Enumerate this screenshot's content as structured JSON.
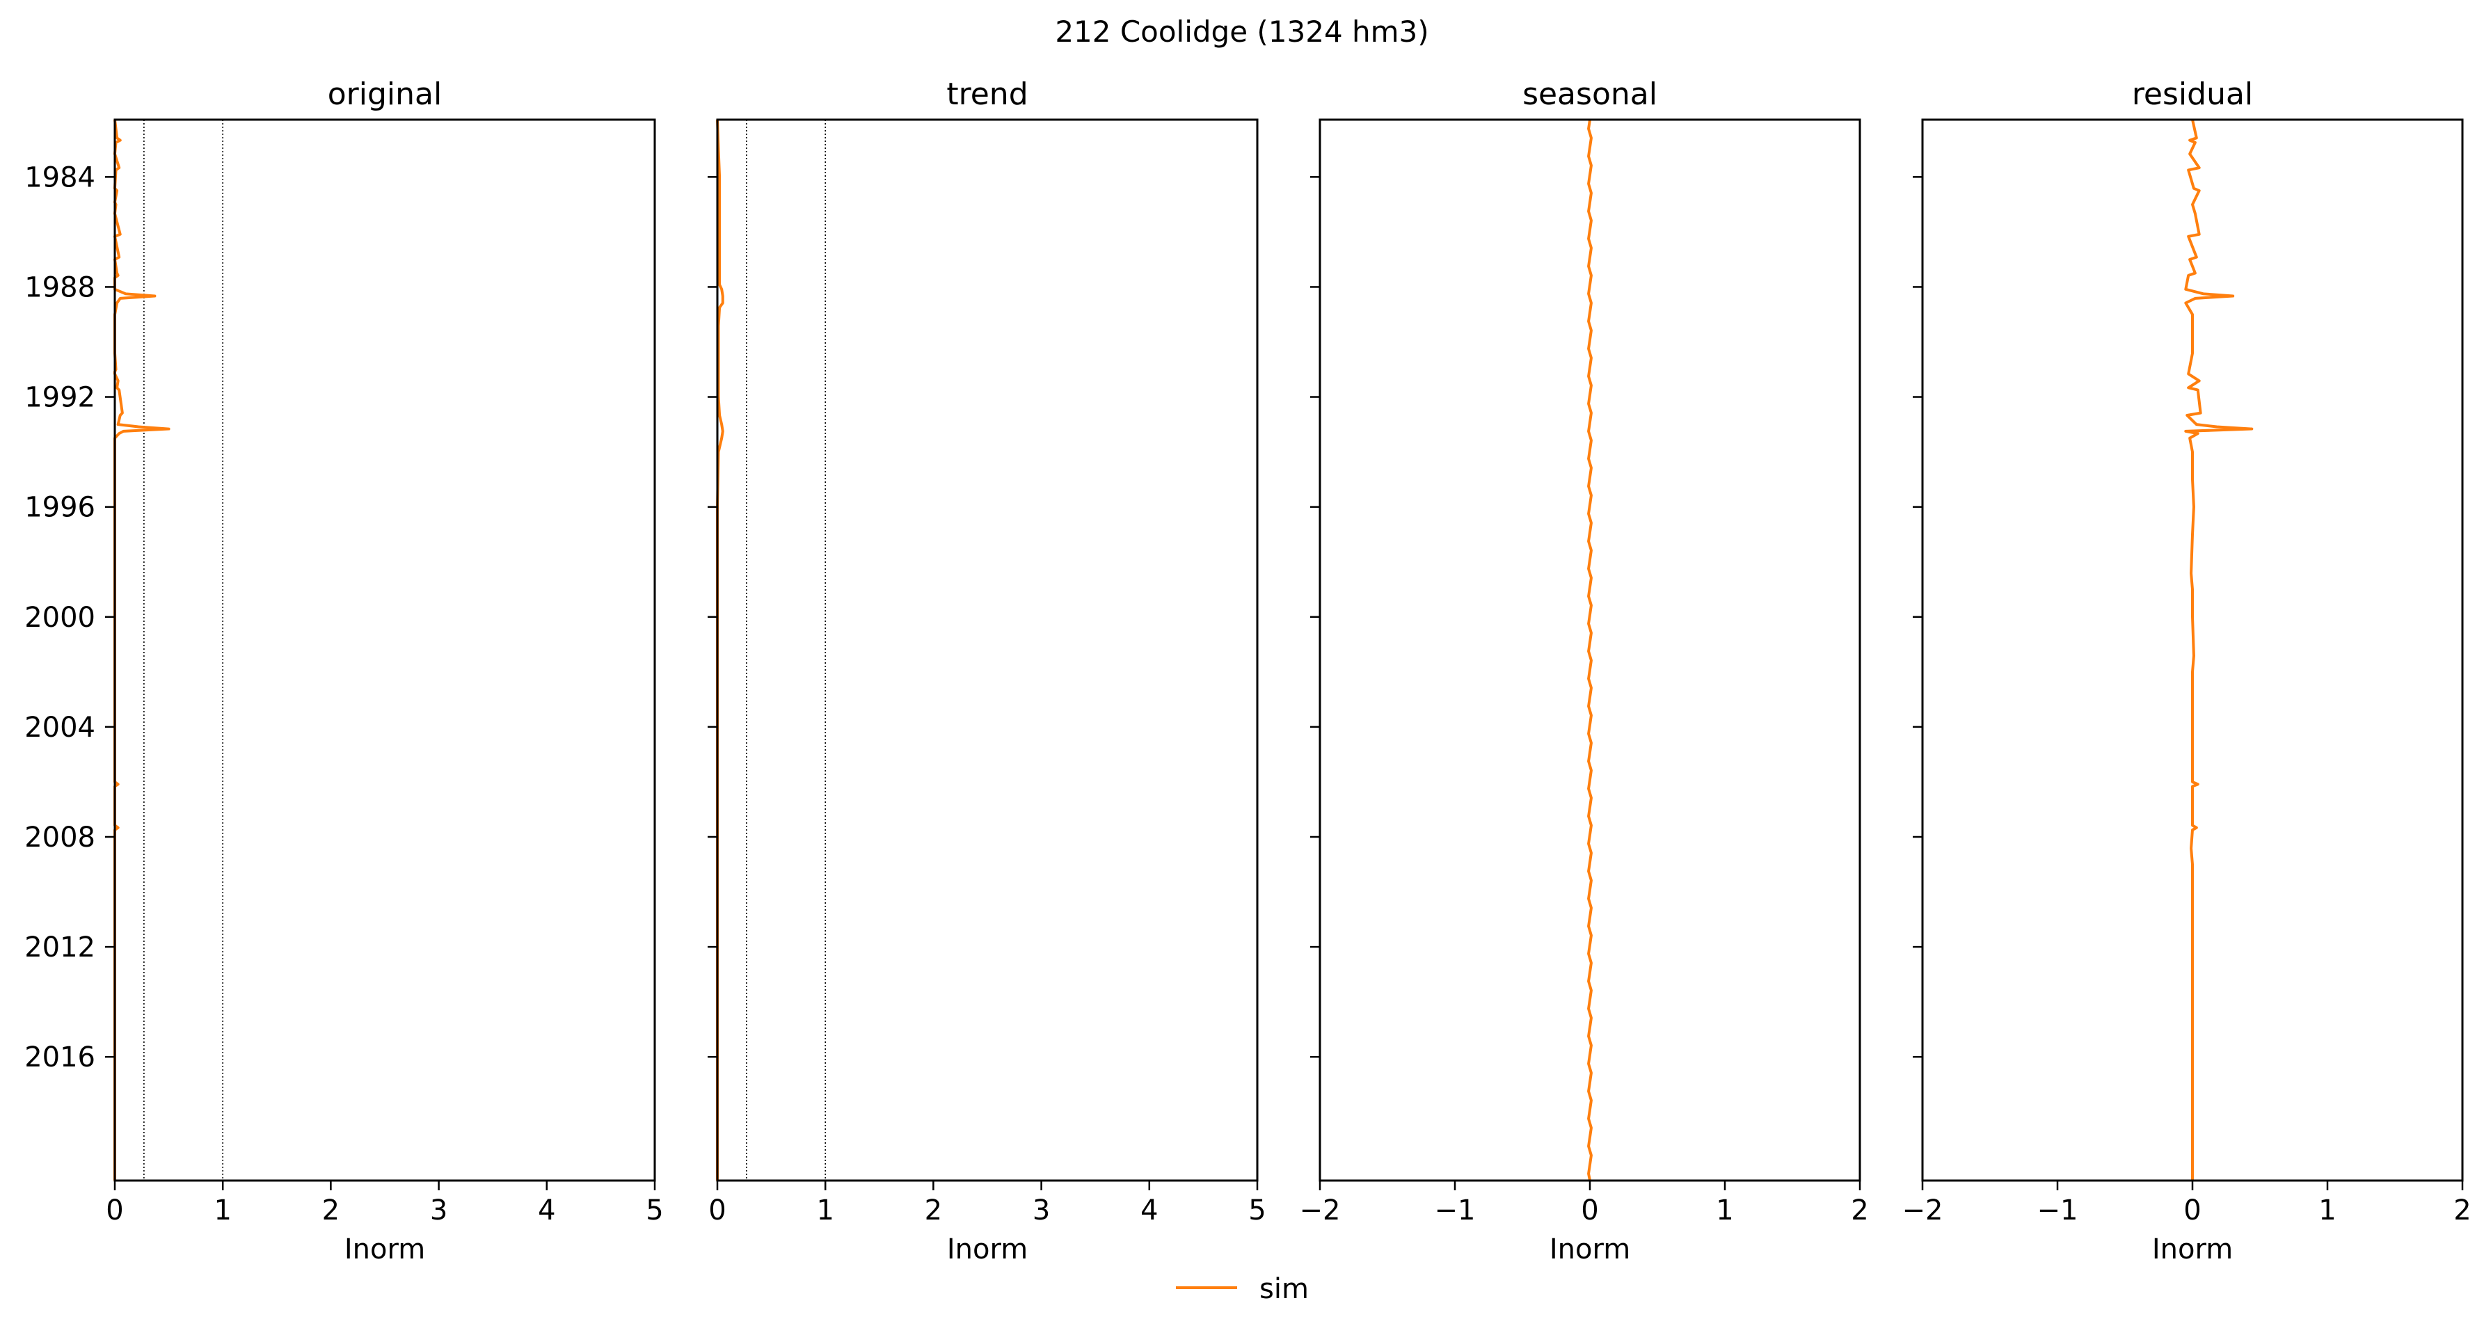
{
  "figure": {
    "suptitle": "212  Coolidge (1324 hm3)",
    "legend": {
      "label": "sim",
      "placement": "bottom-center"
    }
  },
  "colors": {
    "sim": "#ff7f0e",
    "axis": "#000000",
    "reference_line": "#000000"
  },
  "chart_data": [
    {
      "type": "line",
      "title": "original",
      "xlabel": "Inorm",
      "ylabel": "",
      "xlim": [
        0,
        5
      ],
      "ylim": [
        "1981-12-01",
        "2020-07-01"
      ],
      "y_inverted": true,
      "xticks": [
        "0",
        "1",
        "2",
        "3",
        "4",
        "5"
      ],
      "yticks": [
        "1984",
        "1988",
        "1992",
        "1996",
        "2000",
        "2004",
        "2008",
        "2012",
        "2016"
      ],
      "reference_lines_x": [
        0.27,
        1.0
      ],
      "series": [
        {
          "name": "sim",
          "y": [
            "1981-12-01",
            "1982-08-01",
            "1982-09-01",
            "1982-10-01",
            "1983-03-01",
            "1983-09-01",
            "1983-10-01",
            "1984-06-01",
            "1984-07-01",
            "1984-12-01",
            "1985-01-01",
            "1985-05-01",
            "1986-02-01",
            "1986-03-01",
            "1986-12-01",
            "1987-01-01",
            "1987-07-01",
            "1987-08-01",
            "1987-09-01",
            "1988-02-01",
            "1988-04-01",
            "1988-05-01",
            "1988-06-01",
            "1988-08-01",
            "1989-01-01",
            "1989-06-01",
            "1990-06-01",
            "1991-01-01",
            "1991-02-01",
            "1991-03-01",
            "1991-06-01",
            "1991-09-01",
            "1991-10-01",
            "1992-08-01",
            "1992-09-01",
            "1993-01-01",
            "1993-02-01",
            "1993-03-01",
            "1993-04-01",
            "1993-05-01",
            "1993-07-01",
            "1994-01-01",
            "1994-08-01",
            "1995-01-01",
            "1996-01-01",
            "1997-01-01",
            "1998-01-01",
            "1999-01-01",
            "2000-01-01",
            "2001-01-01",
            "2002-01-01",
            "2003-01-01",
            "2004-01-01",
            "2005-01-01",
            "2006-01-01",
            "2006-02-01",
            "2006-03-01",
            "2007-01-01",
            "2007-08-01",
            "2007-09-01",
            "2007-10-01",
            "2008-06-01",
            "2009-01-01",
            "2010-01-01",
            "2011-01-01",
            "2012-01-01",
            "2013-01-01",
            "2014-01-01",
            "2015-01-01",
            "2016-01-01",
            "2017-01-01",
            "2018-01-01",
            "2019-01-01",
            "2020-01-01",
            "2020-07-01"
          ],
          "x": [
            0.0,
            0.02,
            0.05,
            0.01,
            0.0,
            0.04,
            0.01,
            0.0,
            0.02,
            0.0,
            0.01,
            0.0,
            0.05,
            0.0,
            0.04,
            0.0,
            0.02,
            0.03,
            0.0,
            0.0,
            0.1,
            0.37,
            0.05,
            0.02,
            0.0,
            0.0,
            0.0,
            0.01,
            0.0,
            0.0,
            0.03,
            0.02,
            0.04,
            0.07,
            0.05,
            0.03,
            0.22,
            0.5,
            0.08,
            0.04,
            0.0,
            0.0,
            0.0,
            0.0,
            0.0,
            0.0,
            0.0,
            0.0,
            0.0,
            0.0,
            0.0,
            0.0,
            0.0,
            0.0,
            0.0,
            0.03,
            0.0,
            0.0,
            0.0,
            0.03,
            0.0,
            0.0,
            0.0,
            0.0,
            0.0,
            0.0,
            0.0,
            0.0,
            0.0,
            0.0,
            0.0,
            0.0,
            0.0,
            0.0,
            0.0
          ]
        }
      ]
    },
    {
      "type": "line",
      "title": "trend",
      "xlabel": "Inorm",
      "ylabel": "",
      "xlim": [
        0,
        5
      ],
      "ylim": [
        "1981-12-01",
        "2020-07-01"
      ],
      "y_inverted": true,
      "xticks": [
        "0",
        "1",
        "2",
        "3",
        "4",
        "5"
      ],
      "yticks": [],
      "reference_lines_x": [
        0.27,
        1.0
      ],
      "series": [
        {
          "name": "sim",
          "y": [
            "1981-12-01",
            "1983-01-01",
            "1984-01-01",
            "1985-01-01",
            "1986-01-01",
            "1987-01-01",
            "1987-12-01",
            "1988-02-01",
            "1988-05-01",
            "1988-08-01",
            "1988-10-01",
            "1989-06-01",
            "1991-01-01",
            "1992-01-01",
            "1992-09-01",
            "1993-01-01",
            "1993-04-01",
            "1993-07-01",
            "1994-01-01",
            "1996-01-01",
            "2000-01-01",
            "2004-01-01",
            "2008-01-01",
            "2012-01-01",
            "2016-01-01",
            "2020-07-01"
          ],
          "x": [
            0.0,
            0.01,
            0.02,
            0.02,
            0.02,
            0.02,
            0.02,
            0.04,
            0.05,
            0.05,
            0.02,
            0.01,
            0.01,
            0.01,
            0.02,
            0.04,
            0.05,
            0.04,
            0.01,
            0.0,
            0.0,
            0.0,
            0.0,
            0.0,
            0.0,
            0.0
          ]
        }
      ]
    },
    {
      "type": "line",
      "title": "seasonal",
      "xlabel": "Inorm",
      "ylabel": "",
      "xlim": [
        -2,
        2
      ],
      "ylim": [
        "1981-12-01",
        "2020-07-01"
      ],
      "y_inverted": true,
      "xticks": [
        "−2",
        "−1",
        "0",
        "1",
        "2"
      ],
      "yticks": [],
      "reference_lines_x": [],
      "series": [
        {
          "name": "sim",
          "y": [
            "1981-12-01",
            "1982-04-01",
            "1982-08-01",
            "1983-04-01",
            "1983-08-01",
            "1984-04-01",
            "1984-08-01",
            "1985-04-01",
            "1985-08-01",
            "1986-04-01",
            "1986-08-01",
            "1987-04-01",
            "1987-08-01",
            "1988-04-01",
            "1988-08-01",
            "1989-04-01",
            "1989-08-01",
            "1990-04-01",
            "1990-08-01",
            "1991-04-01",
            "1991-08-01",
            "1992-04-01",
            "1992-08-01",
            "1993-04-01",
            "1993-08-01",
            "1994-04-01",
            "1994-08-01",
            "1995-04-01",
            "1995-08-01",
            "1996-04-01",
            "1996-08-01",
            "1997-04-01",
            "1997-08-01",
            "1998-04-01",
            "1998-08-01",
            "1999-04-01",
            "1999-08-01",
            "2000-04-01",
            "2000-08-01",
            "2001-04-01",
            "2001-08-01",
            "2002-04-01",
            "2002-08-01",
            "2003-04-01",
            "2003-08-01",
            "2004-04-01",
            "2004-08-01",
            "2005-04-01",
            "2005-08-01",
            "2006-04-01",
            "2006-08-01",
            "2007-04-01",
            "2007-08-01",
            "2008-04-01",
            "2008-08-01",
            "2009-04-01",
            "2009-08-01",
            "2010-04-01",
            "2010-08-01",
            "2011-04-01",
            "2011-08-01",
            "2012-04-01",
            "2012-08-01",
            "2013-04-01",
            "2013-08-01",
            "2014-04-01",
            "2014-08-01",
            "2015-04-01",
            "2015-08-01",
            "2016-04-01",
            "2016-08-01",
            "2017-04-01",
            "2017-08-01",
            "2018-04-01",
            "2018-08-01",
            "2019-04-01",
            "2019-08-01",
            "2020-04-01",
            "2020-07-01"
          ],
          "x": [
            0.0,
            -0.01,
            0.01,
            -0.01,
            0.01,
            -0.01,
            0.01,
            -0.01,
            0.01,
            -0.01,
            0.01,
            -0.01,
            0.01,
            -0.01,
            0.01,
            -0.01,
            0.01,
            -0.01,
            0.01,
            -0.01,
            0.01,
            -0.01,
            0.01,
            -0.01,
            0.01,
            -0.01,
            0.01,
            -0.01,
            0.01,
            -0.01,
            0.01,
            -0.01,
            0.01,
            -0.01,
            0.01,
            -0.01,
            0.01,
            -0.01,
            0.01,
            -0.01,
            0.01,
            -0.01,
            0.01,
            -0.01,
            0.01,
            -0.01,
            0.01,
            -0.01,
            0.01,
            -0.01,
            0.01,
            -0.01,
            0.01,
            -0.01,
            0.01,
            -0.01,
            0.01,
            -0.01,
            0.01,
            -0.01,
            0.01,
            -0.01,
            0.01,
            -0.01,
            0.01,
            -0.01,
            0.01,
            -0.01,
            0.01,
            -0.01,
            0.01,
            -0.01,
            0.01,
            -0.01,
            0.01,
            -0.01,
            0.01,
            -0.01,
            0.0
          ]
        }
      ]
    },
    {
      "type": "line",
      "title": "residual",
      "xlabel": "Inorm",
      "ylabel": "",
      "xlim": [
        -2,
        2
      ],
      "ylim": [
        "1981-12-01",
        "2020-07-01"
      ],
      "y_inverted": true,
      "xticks": [
        "−2",
        "−1",
        "0",
        "1",
        "2"
      ],
      "yticks": [],
      "reference_lines_x": [],
      "series": [
        {
          "name": "sim",
          "y": [
            "1981-12-01",
            "1982-08-01",
            "1982-09-01",
            "1982-10-01",
            "1983-03-01",
            "1983-09-01",
            "1983-10-01",
            "1984-06-01",
            "1984-07-01",
            "1985-01-01",
            "1985-05-01",
            "1986-02-01",
            "1986-03-01",
            "1986-12-01",
            "1987-01-01",
            "1987-07-01",
            "1987-08-01",
            "1988-02-01",
            "1988-04-01",
            "1988-05-01",
            "1988-06-01",
            "1988-08-01",
            "1989-01-01",
            "1990-06-01",
            "1991-03-01",
            "1991-06-01",
            "1991-09-01",
            "1991-10-01",
            "1992-08-01",
            "1992-09-01",
            "1993-01-01",
            "1993-02-01",
            "1993-03-01",
            "1993-04-01",
            "1993-05-01",
            "1993-07-01",
            "1994-01-01",
            "1995-01-01",
            "1996-01-01",
            "1997-01-01",
            "1998-06-01",
            "1999-01-01",
            "2000-01-01",
            "2001-06-01",
            "2002-01-01",
            "2003-01-01",
            "2004-01-01",
            "2005-01-01",
            "2006-01-01",
            "2006-02-01",
            "2006-03-01",
            "2007-08-01",
            "2007-09-01",
            "2007-10-01",
            "2008-06-01",
            "2009-01-01",
            "2010-01-01",
            "2012-01-01",
            "2014-01-01",
            "2016-01-01",
            "2018-01-01",
            "2020-07-01"
          ],
          "x": [
            0.0,
            0.03,
            -0.02,
            0.02,
            -0.02,
            0.05,
            -0.03,
            0.01,
            0.05,
            0.0,
            0.02,
            0.05,
            -0.03,
            0.03,
            -0.02,
            0.02,
            -0.03,
            -0.05,
            0.08,
            0.3,
            0.02,
            -0.05,
            0.0,
            0.0,
            -0.03,
            0.05,
            -0.03,
            0.04,
            0.06,
            -0.04,
            0.03,
            0.18,
            0.44,
            -0.05,
            0.04,
            -0.02,
            0.0,
            0.0,
            0.01,
            0.0,
            -0.01,
            0.0,
            0.0,
            0.01,
            0.0,
            0.0,
            0.0,
            0.0,
            0.0,
            0.04,
            0.0,
            0.0,
            0.03,
            0.0,
            -0.01,
            0.0,
            0.0,
            0.0,
            0.0,
            0.0,
            0.0,
            0.0
          ]
        }
      ]
    }
  ]
}
